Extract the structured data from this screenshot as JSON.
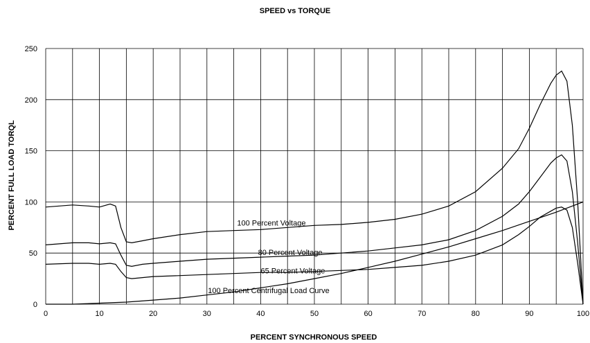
{
  "chart_data": {
    "type": "line",
    "title": "SPEED vs TORQUE",
    "xlabel": "PERCENT SYNCHRONOUS SPEED",
    "ylabel": "PERCENT FULL LOAD TORQL",
    "xlim": [
      0,
      100
    ],
    "ylim": [
      0,
      250
    ],
    "x_ticks": [
      0,
      10,
      20,
      30,
      40,
      50,
      60,
      70,
      80,
      90,
      100
    ],
    "y_ticks": [
      0,
      50,
      100,
      150,
      200,
      250
    ],
    "grid": true,
    "legend": "none",
    "series": [
      {
        "name": "100 Percent Voltage",
        "points": [
          [
            0,
            95
          ],
          [
            5,
            97
          ],
          [
            8,
            96
          ],
          [
            10,
            95
          ],
          [
            12,
            98
          ],
          [
            13,
            96
          ],
          [
            14,
            75
          ],
          [
            15,
            61
          ],
          [
            16,
            60
          ],
          [
            18,
            62
          ],
          [
            20,
            64
          ],
          [
            25,
            68
          ],
          [
            30,
            71
          ],
          [
            35,
            72
          ],
          [
            40,
            73
          ],
          [
            45,
            75
          ],
          [
            50,
            77
          ],
          [
            55,
            78
          ],
          [
            60,
            80
          ],
          [
            65,
            83
          ],
          [
            70,
            88
          ],
          [
            75,
            96
          ],
          [
            80,
            110
          ],
          [
            85,
            133
          ],
          [
            88,
            152
          ],
          [
            90,
            172
          ],
          [
            92,
            195
          ],
          [
            94,
            216
          ],
          [
            95,
            224
          ],
          [
            96,
            228
          ],
          [
            97,
            218
          ],
          [
            98,
            175
          ],
          [
            99,
            100
          ],
          [
            100,
            0
          ]
        ]
      },
      {
        "name": "80 Percent Voltage",
        "points": [
          [
            0,
            58
          ],
          [
            5,
            60
          ],
          [
            8,
            60
          ],
          [
            10,
            59
          ],
          [
            12,
            60
          ],
          [
            13,
            59
          ],
          [
            14,
            48
          ],
          [
            15,
            38
          ],
          [
            16,
            37
          ],
          [
            18,
            39
          ],
          [
            20,
            40
          ],
          [
            25,
            42
          ],
          [
            30,
            44
          ],
          [
            35,
            45
          ],
          [
            40,
            46
          ],
          [
            45,
            47
          ],
          [
            50,
            48
          ],
          [
            55,
            50
          ],
          [
            60,
            52
          ],
          [
            65,
            55
          ],
          [
            70,
            58
          ],
          [
            75,
            63
          ],
          [
            80,
            72
          ],
          [
            85,
            86
          ],
          [
            88,
            98
          ],
          [
            90,
            110
          ],
          [
            92,
            124
          ],
          [
            94,
            138
          ],
          [
            95,
            143
          ],
          [
            96,
            146
          ],
          [
            97,
            140
          ],
          [
            98,
            110
          ],
          [
            99,
            60
          ],
          [
            100,
            0
          ]
        ]
      },
      {
        "name": "65 Percent Voltage",
        "points": [
          [
            0,
            39
          ],
          [
            5,
            40
          ],
          [
            8,
            40
          ],
          [
            10,
            39
          ],
          [
            12,
            40
          ],
          [
            13,
            39
          ],
          [
            14,
            32
          ],
          [
            15,
            26
          ],
          [
            16,
            25
          ],
          [
            18,
            26
          ],
          [
            20,
            27
          ],
          [
            25,
            28
          ],
          [
            30,
            29
          ],
          [
            35,
            30
          ],
          [
            40,
            31
          ],
          [
            45,
            31
          ],
          [
            50,
            32
          ],
          [
            55,
            33
          ],
          [
            60,
            34
          ],
          [
            65,
            36
          ],
          [
            70,
            38
          ],
          [
            75,
            42
          ],
          [
            80,
            48
          ],
          [
            85,
            58
          ],
          [
            88,
            68
          ],
          [
            90,
            76
          ],
          [
            92,
            85
          ],
          [
            94,
            91
          ],
          [
            95,
            94
          ],
          [
            96,
            95
          ],
          [
            97,
            92
          ],
          [
            98,
            75
          ],
          [
            99,
            40
          ],
          [
            100,
            0
          ]
        ]
      },
      {
        "name": "100 Percent Centrifugal Load Curve",
        "points": [
          [
            0,
            0
          ],
          [
            5,
            0
          ],
          [
            10,
            1
          ],
          [
            15,
            2
          ],
          [
            20,
            4
          ],
          [
            25,
            6
          ],
          [
            30,
            9
          ],
          [
            35,
            12
          ],
          [
            40,
            16
          ],
          [
            45,
            20
          ],
          [
            50,
            25
          ],
          [
            55,
            30
          ],
          [
            60,
            36
          ],
          [
            65,
            42
          ],
          [
            70,
            49
          ],
          [
            75,
            56
          ],
          [
            80,
            64
          ],
          [
            85,
            72
          ],
          [
            90,
            81
          ],
          [
            95,
            90
          ],
          [
            100,
            100
          ]
        ]
      }
    ],
    "annotations": [
      {
        "text": "100 Percent Voltage",
        "x": 42,
        "y": 77
      },
      {
        "text": "80 Percent Voltage",
        "x": 45.5,
        "y": 48
      },
      {
        "text": "65 Percent Voltage",
        "x": 46,
        "y": 30
      },
      {
        "text": "100 Percent Centrifugal Load Curve",
        "x": 41.5,
        "y": 11
      }
    ]
  }
}
